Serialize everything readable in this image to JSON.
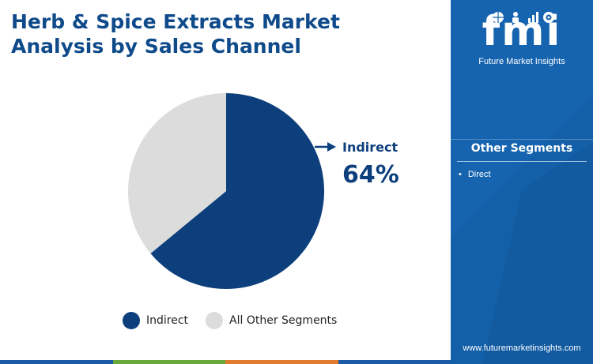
{
  "title": {
    "line1": "Herb & Spice Extracts Market",
    "line2": "Analysis by Sales Channel"
  },
  "chart_data": {
    "type": "pie",
    "title": "Herb & Spice Extracts Market Analysis by Sales Channel",
    "categories": [
      "Indirect",
      "All Other Segments"
    ],
    "values": [
      64,
      36
    ],
    "unit": "%",
    "colors": [
      "#0d3f7d",
      "#dcdcdc"
    ],
    "callout": {
      "label": "Indirect",
      "value": "64%"
    },
    "legend_position": "bottom"
  },
  "legend": [
    {
      "label": "Indirect",
      "color": "#0d3f7d"
    },
    {
      "label": "All Other Segments",
      "color": "#dcdcdc"
    }
  ],
  "bottom_bar_colors": [
    "#1a5aa6",
    "#6aa83c",
    "#e07a2f",
    "#1a5aa6"
  ],
  "panel": {
    "background": "#1460a8",
    "logo": {
      "letters": "fmi",
      "subtitle": "Future Market Insights",
      "icons": [
        "globe-icon",
        "person-icon",
        "chart-icon",
        "target-icon"
      ]
    },
    "segments_heading": "Other Segments",
    "segments": [
      "Direct"
    ],
    "website": "www.futuremarketinsights.com"
  }
}
